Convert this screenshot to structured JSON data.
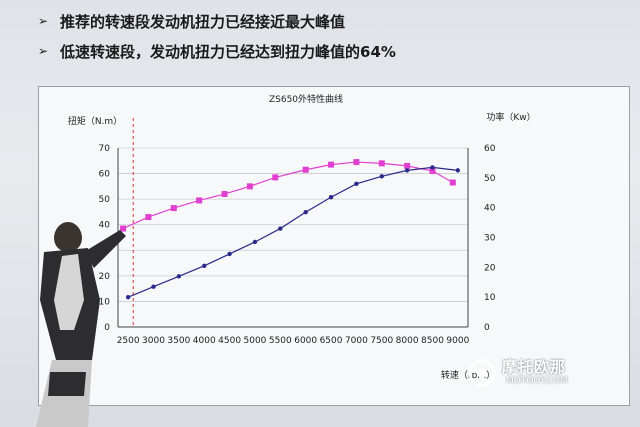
{
  "slide": {
    "bullets": [
      {
        "icon": "arrow-bullet-icon",
        "text": "推荐的转速段发动机扭力已经接近最大峰值"
      },
      {
        "icon": "arrow-bullet-icon",
        "text": "低速转速段，发动机扭力已经达到扭力峰值的64%"
      }
    ],
    "watermark": {
      "main": "摩托欧那",
      "sub": "MOTOOY.COM"
    }
  },
  "chart_data": {
    "type": "line",
    "title": "ZS650外特性曲线",
    "xlabel": "转速（rpm）",
    "ylabel_left": "扭矩（N.m）",
    "ylabel_right": "功率（Kw）",
    "x": [
      2500,
      3000,
      3500,
      4000,
      4500,
      5000,
      5500,
      6000,
      6500,
      7000,
      7500,
      8000,
      8500,
      9000
    ],
    "x_ticks": [
      "2500",
      "3000",
      "3500",
      "4000",
      "4500",
      "5000",
      "5500",
      "6000",
      "6500",
      "7000",
      "7500",
      "8000",
      "8500",
      "9000"
    ],
    "xlim": [
      2300,
      9200
    ],
    "y_left_ticks": [
      "0",
      "10",
      "20",
      "30",
      "40",
      "50",
      "60",
      "70"
    ],
    "ylim_left": [
      0,
      70
    ],
    "y_right_ticks": [
      "0",
      "10",
      "20",
      "30",
      "40",
      "50",
      "60"
    ],
    "ylim_right": [
      0,
      60
    ],
    "reference_line_x": 2600,
    "series": [
      {
        "axis": "left",
        "color": "#e040d0",
        "marker": "square",
        "x": [
          2400,
          2900,
          3400,
          3900,
          4400,
          4900,
          5400,
          6000,
          6500,
          7000,
          7500,
          8000,
          8500,
          8900
        ],
        "values": [
          38.5,
          43,
          46.5,
          49.5,
          52,
          55,
          58.5,
          61.5,
          63.5,
          64.5,
          64,
          63,
          61,
          56.5
        ]
      },
      {
        "axis": "right",
        "color": "#2a2a8a",
        "marker": "dot",
        "x": [
          2500,
          3000,
          3500,
          4000,
          4500,
          5000,
          5500,
          6000,
          6500,
          7000,
          7500,
          8000,
          8500,
          9000
        ],
        "values": [
          10,
          13.5,
          17,
          20.5,
          24.5,
          28.5,
          33,
          38.5,
          43.5,
          48,
          50.5,
          52.5,
          53.5,
          52.5
        ]
      }
    ]
  }
}
